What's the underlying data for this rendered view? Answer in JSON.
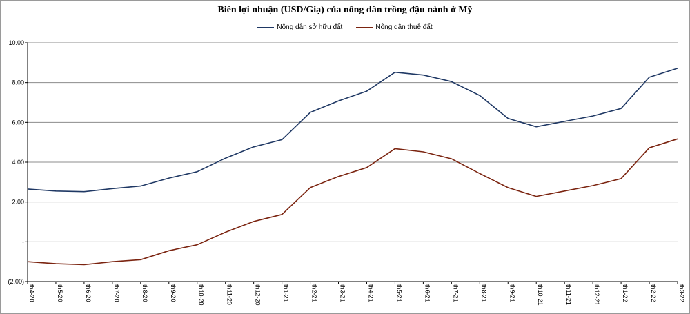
{
  "chart_data": {
    "type": "line",
    "title": "Biên lợi nhuận (USD/Giạ) của nông dân trồng đậu nành ở Mỹ",
    "xlabel": "",
    "ylabel": "",
    "ylim": [
      -2,
      10
    ],
    "yticks": [
      10,
      8,
      6,
      4,
      2,
      0,
      -2
    ],
    "ytick_labels": [
      "10.00",
      "8.00",
      "6.00",
      "4.00",
      "2.00",
      "-",
      "(2.00)"
    ],
    "grid": true,
    "legend_position": "top-center",
    "categories": [
      "th4-20",
      "th5-20",
      "th6-20",
      "th7-20",
      "th8-20",
      "th9-20",
      "th10-20",
      "th11-20",
      "th12-20",
      "th1-21",
      "th2-21",
      "th3-21",
      "th4-21",
      "th5-21",
      "th6-21",
      "th7-21",
      "th8-21",
      "th9-21",
      "th10-21",
      "th11-21",
      "th12-21",
      "th1-22",
      "th2-22",
      "th3-22"
    ],
    "series": [
      {
        "name": "Nông dân sở hữu đất",
        "color": "#1f3864",
        "values": [
          2.65,
          2.55,
          2.52,
          2.67,
          2.8,
          3.2,
          3.52,
          4.2,
          4.77,
          5.13,
          6.5,
          7.08,
          7.57,
          8.52,
          8.38,
          8.05,
          7.35,
          6.2,
          5.78,
          6.05,
          6.32,
          6.7,
          8.27,
          8.72
        ]
      },
      {
        "name": "Nông dân thuê đất",
        "color": "#7b2410",
        "values": [
          -1.0,
          -1.1,
          -1.15,
          -1.0,
          -0.9,
          -0.45,
          -0.15,
          0.48,
          1.02,
          1.37,
          2.72,
          3.28,
          3.73,
          4.68,
          4.52,
          4.17,
          3.43,
          2.72,
          2.28,
          2.55,
          2.82,
          3.17,
          4.72,
          5.17
        ]
      }
    ]
  }
}
